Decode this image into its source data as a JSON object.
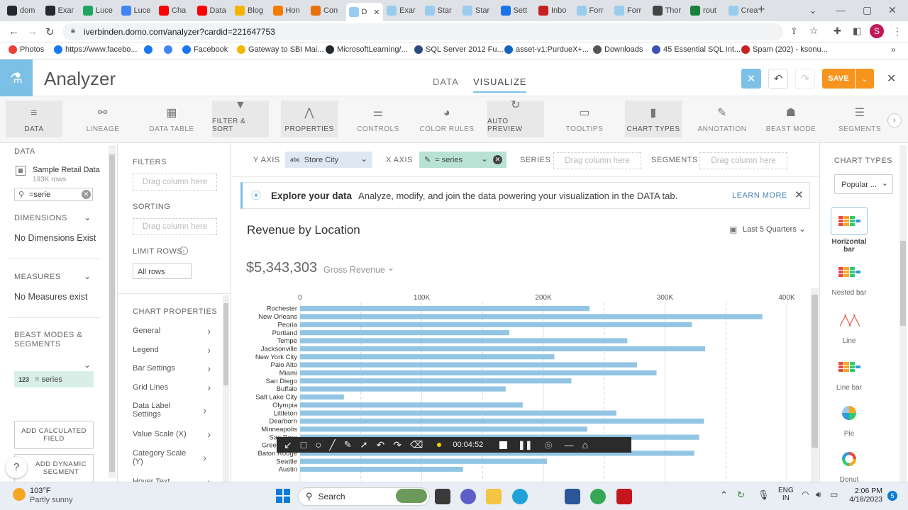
{
  "browser": {
    "tabs": [
      {
        "label": "dom",
        "color": "#24292f"
      },
      {
        "label": "Exar",
        "color": "#24292f"
      },
      {
        "label": "Luce",
        "color": "#1fa463"
      },
      {
        "label": "Luce",
        "color": "#4285f4"
      },
      {
        "label": "Cha",
        "color": "#ff0000"
      },
      {
        "label": "Data",
        "color": "#ff0000"
      },
      {
        "label": "Blog",
        "color": "#f4b400"
      },
      {
        "label": "Hon",
        "color": "#f57c00"
      },
      {
        "label": "Con",
        "color": "#e8710a"
      },
      {
        "label": "D",
        "color": "#99ccee"
      },
      {
        "label": "Exar",
        "color": "#99ccee"
      },
      {
        "label": "Star",
        "color": "#99ccee"
      },
      {
        "label": "Star",
        "color": "#99ccee"
      },
      {
        "label": "Sett",
        "color": "#1a73e8"
      },
      {
        "label": "Inbo",
        "color": "#c5221f"
      },
      {
        "label": "Forr",
        "color": "#99ccee"
      },
      {
        "label": "Forr",
        "color": "#99ccee"
      },
      {
        "label": "Thor",
        "color": "#444444"
      },
      {
        "label": "rout",
        "color": "#188038"
      },
      {
        "label": "Crea",
        "color": "#99ccee"
      }
    ],
    "url": "iverbinden.domo.com/analyzer?cardid=221647753",
    "bookmarks": [
      {
        "label": "Photos",
        "color": "#e94235"
      },
      {
        "label": "https://www.facebo...",
        "color": "#1877f2"
      },
      {
        "label": "",
        "color": "#1877f2"
      },
      {
        "label": "",
        "color": "#4285f4"
      },
      {
        "label": "Facebook",
        "color": "#1877f2"
      },
      {
        "label": "Gateway to SBI Mai...",
        "color": "#f4b400"
      },
      {
        "label": "MicrosoftLearning/...",
        "color": "#24292f"
      },
      {
        "label": "SQL Server 2012 Fu...",
        "color": "#2b4c7e"
      },
      {
        "label": "asset-v1:PurdueX+...",
        "color": "#1565c0"
      },
      {
        "label": "Downloads",
        "color": "#555555"
      },
      {
        "label": "45 Essential SQL Int...",
        "color": "#3f51b5"
      },
      {
        "label": "Spam (202) - ksonu...",
        "color": "#c5221f"
      }
    ]
  },
  "app": {
    "title": "Analyzer",
    "view_tabs": {
      "data": "DATA",
      "visualize": "VISUALIZE"
    },
    "save_label": "SAVE"
  },
  "toolbar": [
    {
      "label": "DATA",
      "icon": "database-icon",
      "glyph": "≡",
      "on": true
    },
    {
      "label": "LINEAGE",
      "icon": "lineage-icon",
      "glyph": "⚯",
      "on": false
    },
    {
      "label": "DATA TABLE",
      "icon": "table-icon",
      "glyph": "▦",
      "on": false
    },
    {
      "label": "FILTER & SORT",
      "icon": "filter-icon",
      "glyph": "▼",
      "on": true
    },
    {
      "label": "PROPERTIES",
      "icon": "compass-icon",
      "glyph": "⋀",
      "on": true
    },
    {
      "label": "CONTROLS",
      "icon": "sliders-icon",
      "glyph": "⚌",
      "on": false
    },
    {
      "label": "COLOR RULES",
      "icon": "palette-icon",
      "glyph": "◕",
      "on": false
    },
    {
      "label": "AUTO PREVIEW",
      "icon": "refresh-icon",
      "glyph": "↻",
      "on": true
    },
    {
      "label": "TOOLTIPS",
      "icon": "tooltip-icon",
      "glyph": "▭",
      "on": false
    },
    {
      "label": "CHART TYPES",
      "icon": "bar-chart-icon",
      "glyph": "▮",
      "on": true
    },
    {
      "label": "ANNOTATION",
      "icon": "pen-icon",
      "glyph": "✎",
      "on": false
    },
    {
      "label": "BEAST MODE",
      "icon": "beast-icon",
      "glyph": "☗",
      "on": false
    },
    {
      "label": "SEGMENTS",
      "icon": "segments-icon",
      "glyph": "☰",
      "on": false
    }
  ],
  "left": {
    "data_label": "DATA",
    "dataset_name": "Sample Retail Data",
    "dataset_rows": "193K rows",
    "search_value": "=serie",
    "dimensions_label": "DIMENSIONS",
    "no_dimensions": "No Dimensions Exist",
    "measures_label": "MEASURES",
    "no_measures": "No Measures exist",
    "beast_label": "BEAST MODES & SEGMENTS",
    "beast_item_prefix": "123",
    "beast_item": "= series",
    "add_calc": "ADD CALCULATED FIELD",
    "add_dyn": "ADD DYNAMIC SEGMENT",
    "help": "?"
  },
  "middle": {
    "filters": "FILTERS",
    "filters_drop": "Drag column here",
    "sorting": "SORTING",
    "sorting_drop": "Drag column here",
    "limit_rows": "LIMIT ROWS",
    "limit_value": "All rows",
    "chart_props": "CHART PROPERTIES",
    "props": [
      "General",
      "Legend",
      "Bar Settings",
      "Grid Lines",
      "Data Label Settings",
      "Value Scale (X)",
      "Category Scale (Y)",
      "Hover Text"
    ]
  },
  "axes": {
    "y_label": "Y AXIS",
    "y_prefix": "abc",
    "y_value": "Store City",
    "x_label": "X AXIS",
    "x_value": "= series",
    "series_label": "SERIES",
    "series_drop": "Drag column here",
    "segments_label": "SEGMENTS",
    "segments_drop": "Drag column here"
  },
  "banner": {
    "title": "Explore your data",
    "text": "Analyze, modify, and join the data powering your visualization in the DATA tab.",
    "link": "LEARN MORE"
  },
  "card": {
    "title": "Revenue by Location",
    "date_range": "Last 5 Quarters",
    "summary_value": "$5,343,303",
    "summary_label": "Gross Revenue"
  },
  "chart_data": {
    "type": "bar",
    "orientation": "horizontal",
    "x_ticks": [
      "0",
      "100K",
      "200K",
      "300K",
      "400K"
    ],
    "xlim": [
      0,
      400000
    ],
    "grid": true,
    "bar_color": "#92c5e3",
    "categories": [
      "Rochester",
      "New Orleans",
      "Peoria",
      "Portland",
      "Tempe",
      "Jacksonville",
      "New York City",
      "Palo Alto",
      "Miami",
      "San Diego",
      "Buffalo",
      "Salt Lake City",
      "Olympia",
      "Littleton",
      "Dearborn",
      "Minneapolis",
      "San Bern",
      "Greensboro",
      "Baton Rouge",
      "Seattle",
      "Austin"
    ],
    "values": [
      238000,
      380000,
      322000,
      172000,
      269000,
      333000,
      209000,
      277000,
      293000,
      223000,
      169000,
      36000,
      183000,
      260000,
      332000,
      236000,
      328000,
      199000,
      324000,
      203000,
      134000
    ]
  },
  "chart_types": {
    "label": "CHART TYPES",
    "dropdown": "Popular ...",
    "items": [
      "Horizontal bar",
      "Nested bar",
      "Line",
      "Line bar",
      "Pie",
      "Donut"
    ]
  },
  "recorder": {
    "time": "00:04:52"
  },
  "taskbar": {
    "temp": "103°F",
    "weather": "Partly sunny",
    "search": "Search",
    "lang1": "ENG",
    "lang2": "IN",
    "time": "2:06 PM",
    "date": "4/18/2023",
    "badge": "5"
  }
}
